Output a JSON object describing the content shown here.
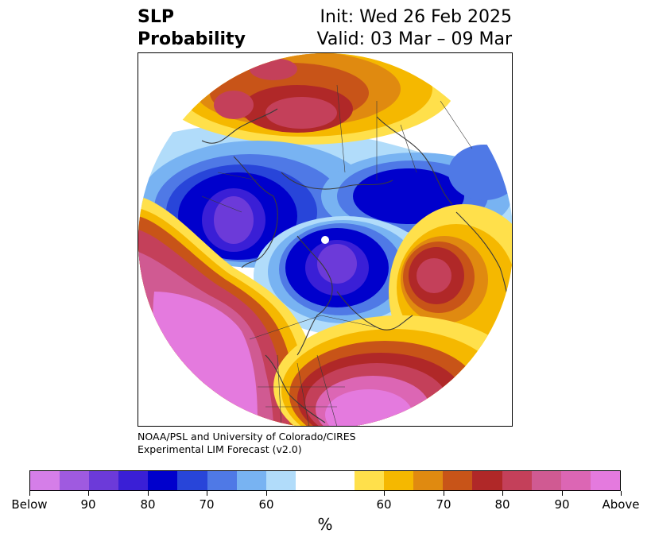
{
  "title": {
    "variable_line1": "SLP",
    "variable_line2": "Probability",
    "init": "Init: Wed 26 Feb 2025",
    "valid": "Valid: 03 Mar – 09 Mar"
  },
  "credit": {
    "line1": "NOAA/PSL and University of Colorado/CIRES",
    "line2": "Experimental LIM Forecast (v2.0)"
  },
  "colorbar": {
    "units": "%",
    "colors": [
      "#d57ee8",
      "#9f5ae0",
      "#6c3ad9",
      "#3a1fd6",
      "#0000cc",
      "#2845d9",
      "#4f79e6",
      "#78b3f2",
      "#b1dcfa",
      "#ffffff",
      "#ffffff",
      "#ffe04b",
      "#f5b800",
      "#e08a10",
      "#c85418",
      "#b02828",
      "#c4405a",
      "#d05a92",
      "#dc66b4",
      "#e47ade"
    ],
    "tick_labels": [
      "Below",
      "90",
      "80",
      "70",
      "60",
      "60",
      "70",
      "80",
      "90",
      "Above"
    ]
  },
  "map": {
    "projection": "north-polar-stereographic",
    "features": [
      "probability-shading",
      "coastlines",
      "country-borders",
      "state-borders"
    ]
  }
}
